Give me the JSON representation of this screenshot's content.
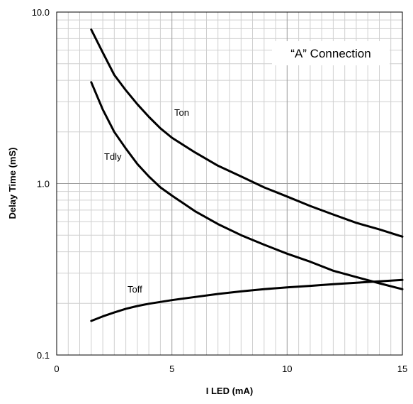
{
  "chart_data": {
    "type": "line",
    "title": "",
    "xlabel": "I LED (mA)",
    "ylabel": "Delay Time (mS)",
    "xlim": [
      0,
      15
    ],
    "ylim": [
      0.1,
      10.0
    ],
    "yscale": "log",
    "grid": true,
    "x_ticks": [
      0,
      5,
      10,
      15
    ],
    "y_ticks": [
      0.1,
      1.0,
      10.0
    ],
    "x_tick_labels": [
      "0",
      "5",
      "10",
      "15"
    ],
    "y_tick_labels": [
      "0.1",
      "1.0",
      "10.0"
    ],
    "annotation": "“A” Connection",
    "series": [
      {
        "name": "Ton",
        "x": [
          1.5,
          2,
          2.5,
          3,
          3.5,
          4,
          4.5,
          5,
          6,
          7,
          8,
          9,
          10,
          11,
          12,
          13,
          14,
          15
        ],
        "y": [
          7.9,
          5.8,
          4.3,
          3.5,
          2.9,
          2.45,
          2.1,
          1.85,
          1.52,
          1.27,
          1.1,
          0.95,
          0.84,
          0.74,
          0.66,
          0.59,
          0.54,
          0.49
        ]
      },
      {
        "name": "Tdly",
        "x": [
          1.5,
          2,
          2.5,
          3,
          3.5,
          4,
          4.5,
          5,
          6,
          7,
          8,
          9,
          10,
          11,
          12,
          13,
          14,
          15
        ],
        "y": [
          3.9,
          2.7,
          2.0,
          1.6,
          1.3,
          1.1,
          0.95,
          0.85,
          0.69,
          0.58,
          0.5,
          0.44,
          0.39,
          0.35,
          0.31,
          0.285,
          0.262,
          0.242
        ]
      },
      {
        "name": "Toff",
        "x": [
          1.5,
          2,
          2.5,
          3,
          3.5,
          4,
          5,
          6,
          7,
          8,
          9,
          10,
          11,
          12,
          13,
          14,
          15
        ],
        "y": [
          0.158,
          0.168,
          0.177,
          0.186,
          0.193,
          0.199,
          0.209,
          0.218,
          0.227,
          0.235,
          0.242,
          0.248,
          0.253,
          0.259,
          0.264,
          0.269,
          0.274
        ]
      }
    ]
  }
}
